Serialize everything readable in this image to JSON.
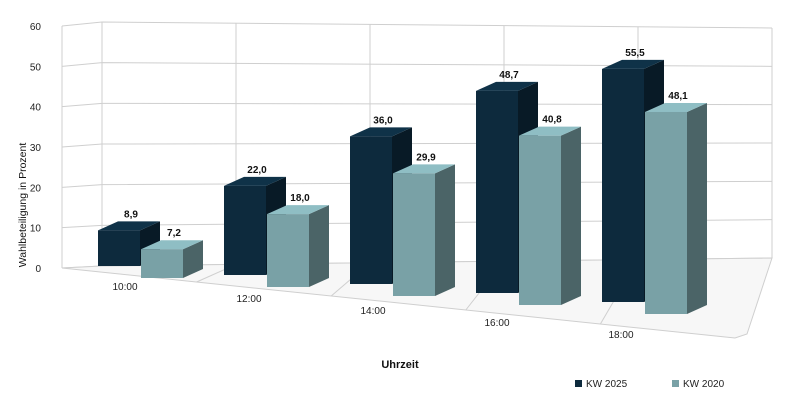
{
  "chart_data": {
    "type": "bar",
    "categories": [
      "10:00",
      "12:00",
      "14:00",
      "16:00",
      "18:00"
    ],
    "series": [
      {
        "name": "KW 2025",
        "values": [
          8.9,
          22.0,
          36.0,
          48.7,
          55.5
        ],
        "labels": [
          "8,9",
          "22,0",
          "36,0",
          "48,7",
          "55,5"
        ],
        "color": "#0d2a3d"
      },
      {
        "name": "KW 2020",
        "values": [
          7.2,
          18.0,
          29.9,
          40.8,
          48.1
        ],
        "labels": [
          "7,2",
          "18,0",
          "29,9",
          "40,8",
          "48,1"
        ],
        "color": "#79a1a6"
      }
    ],
    "xlabel": "Uhrzeit",
    "ylabel": "Wahlbeteiligung in Prozent",
    "ylim": [
      0,
      60
    ],
    "yticks": [
      0,
      10,
      20,
      30,
      40,
      50,
      60
    ],
    "grid": true,
    "legend_position": "bottom-right",
    "style": "3d"
  }
}
